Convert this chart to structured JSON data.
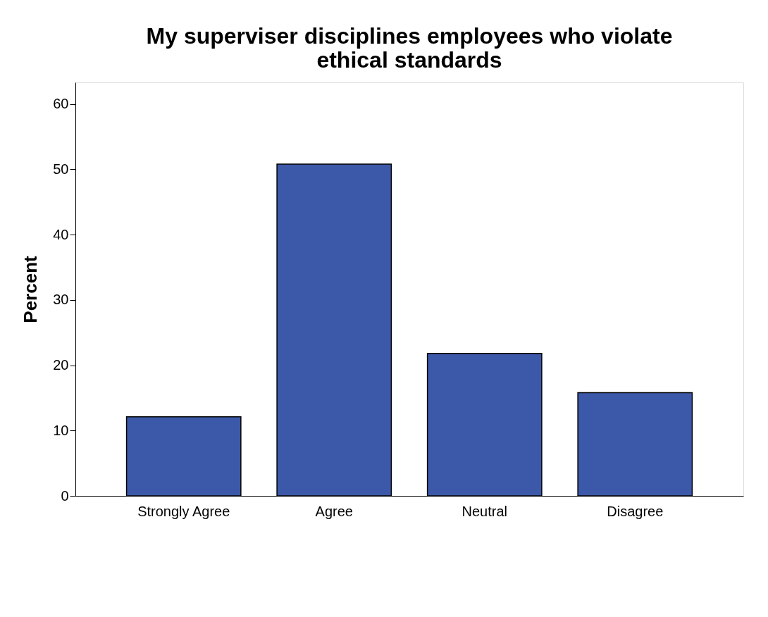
{
  "chart_data": {
    "type": "bar",
    "title": "My superviser disciplines employees who violate ethical standards",
    "ylabel": "Percent",
    "categories": [
      "Strongly Agree",
      "Agree",
      "Neutral",
      "Disagree"
    ],
    "values": [
      12.1,
      50.8,
      21.8,
      15.8
    ],
    "color": "#3c58a8",
    "ylim": [
      0,
      63.3
    ],
    "yticks": [
      0,
      10,
      20,
      30,
      40,
      50,
      60
    ],
    "grid": false
  }
}
